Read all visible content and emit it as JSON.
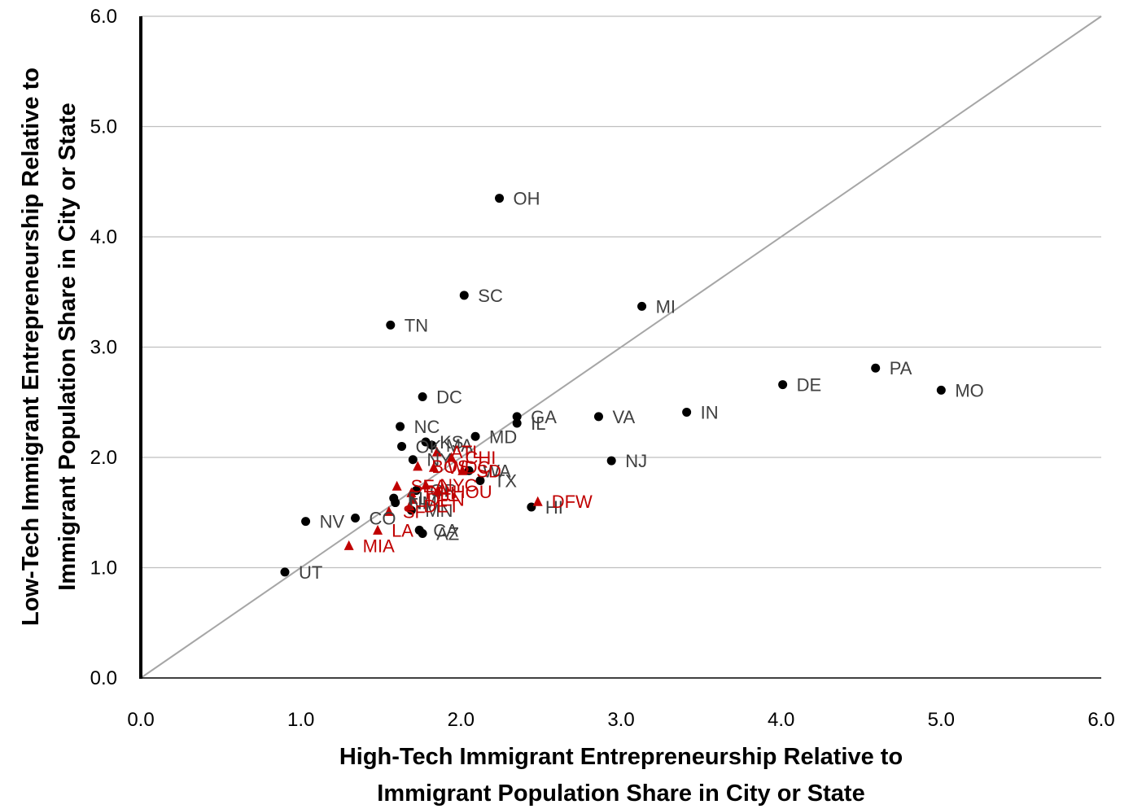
{
  "chart_data": {
    "type": "scatter",
    "xlabel": [
      "High-Tech Immigrant Entrepreneurship Relative to",
      "Immigrant Population Share in City or State"
    ],
    "ylabel": [
      "Low-Tech Immigrant Entrepreneurship Relative to",
      "Immigrant Population Share in City or State"
    ],
    "xlim": [
      0,
      6
    ],
    "ylim": [
      0,
      6
    ],
    "x_ticks": [
      "0.0",
      "1.0",
      "2.0",
      "3.0",
      "4.0",
      "5.0",
      "6.0"
    ],
    "y_ticks": [
      "0.0",
      "1.0",
      "2.0",
      "3.0",
      "4.0",
      "5.0",
      "6.0"
    ],
    "horizontal_grid": true,
    "vertical_grid": false,
    "reference_line": {
      "from": [
        0,
        0
      ],
      "to": [
        6,
        6
      ],
      "color": "#a6a6a6"
    },
    "colors": {
      "state": "#000000",
      "state_label": "#404040",
      "city": "#c00000",
      "axis": "#000000",
      "grid": "#bfbfbf"
    },
    "series": [
      {
        "marker": "circle",
        "points": [
          {
            "label": "OH",
            "x": 2.24,
            "y": 4.35
          },
          {
            "label": "SC",
            "x": 2.02,
            "y": 3.47
          },
          {
            "label": "MI",
            "x": 3.13,
            "y": 3.37
          },
          {
            "label": "TN",
            "x": 1.56,
            "y": 3.2
          },
          {
            "label": "PA",
            "x": 4.59,
            "y": 2.81
          },
          {
            "label": "DE",
            "x": 4.01,
            "y": 2.66
          },
          {
            "label": "MO",
            "x": 5.0,
            "y": 2.61
          },
          {
            "label": "DC",
            "x": 1.76,
            "y": 2.55
          },
          {
            "label": "IN",
            "x": 3.41,
            "y": 2.41
          },
          {
            "label": "VA",
            "x": 2.86,
            "y": 2.37
          },
          {
            "label": "GA",
            "x": 2.35,
            "y": 2.37
          },
          {
            "label": "IL",
            "x": 2.35,
            "y": 2.31
          },
          {
            "label": "NC",
            "x": 1.62,
            "y": 2.28
          },
          {
            "label": "MD",
            "x": 2.09,
            "y": 2.19
          },
          {
            "label": "KS",
            "x": 1.78,
            "y": 2.14
          },
          {
            "label": "MA",
            "x": 1.82,
            "y": 2.11
          },
          {
            "label": "OK",
            "x": 1.63,
            "y": 2.1
          },
          {
            "label": "NJ",
            "x": 2.94,
            "y": 1.97
          },
          {
            "label": "NY",
            "x": 1.7,
            "y": 1.98
          },
          {
            "label": "WA",
            "x": 2.05,
            "y": 1.88
          },
          {
            "label": "TX",
            "x": 2.12,
            "y": 1.79
          },
          {
            "label": "OR",
            "x": 1.72,
            "y": 1.7
          },
          {
            "label": "FL",
            "x": 1.58,
            "y": 1.63
          },
          {
            "label": "NM",
            "x": 1.59,
            "y": 1.59
          },
          {
            "label": "HI",
            "x": 2.44,
            "y": 1.55
          },
          {
            "label": "MN",
            "x": 1.69,
            "y": 1.52
          },
          {
            "label": "CO",
            "x": 1.34,
            "y": 1.45
          },
          {
            "label": "NV",
            "x": 1.03,
            "y": 1.42
          },
          {
            "label": "CA",
            "x": 1.74,
            "y": 1.34
          },
          {
            "label": "AZ",
            "x": 1.76,
            "y": 1.31
          },
          {
            "label": "UT",
            "x": 0.9,
            "y": 0.96
          }
        ]
      },
      {
        "marker": "triangle",
        "points": [
          {
            "label": "ATL",
            "x": 1.85,
            "y": 2.05
          },
          {
            "label": "CHI",
            "x": 1.94,
            "y": 2.0
          },
          {
            "label": "WDC",
            "x": 1.83,
            "y": 1.91
          },
          {
            "label": "BOS",
            "x": 1.73,
            "y": 1.92
          },
          {
            "label": "SD",
            "x": 2.01,
            "y": 1.88
          },
          {
            "label": "DFW",
            "x": 2.48,
            "y": 1.6
          },
          {
            "label": "NYC",
            "x": 1.78,
            "y": 1.75
          },
          {
            "label": "SEA",
            "x": 1.6,
            "y": 1.74
          },
          {
            "label": "HOU",
            "x": 1.86,
            "y": 1.69
          },
          {
            "label": "PHI",
            "x": 1.69,
            "y": 1.68
          },
          {
            "label": "DEN",
            "x": 1.7,
            "y": 1.62
          },
          {
            "label": "DET",
            "x": 1.68,
            "y": 1.56
          },
          {
            "label": "SF",
            "x": 1.55,
            "y": 1.51
          },
          {
            "label": "LA",
            "x": 1.48,
            "y": 1.34
          },
          {
            "label": "MIA",
            "x": 1.3,
            "y": 1.2
          }
        ]
      }
    ]
  }
}
